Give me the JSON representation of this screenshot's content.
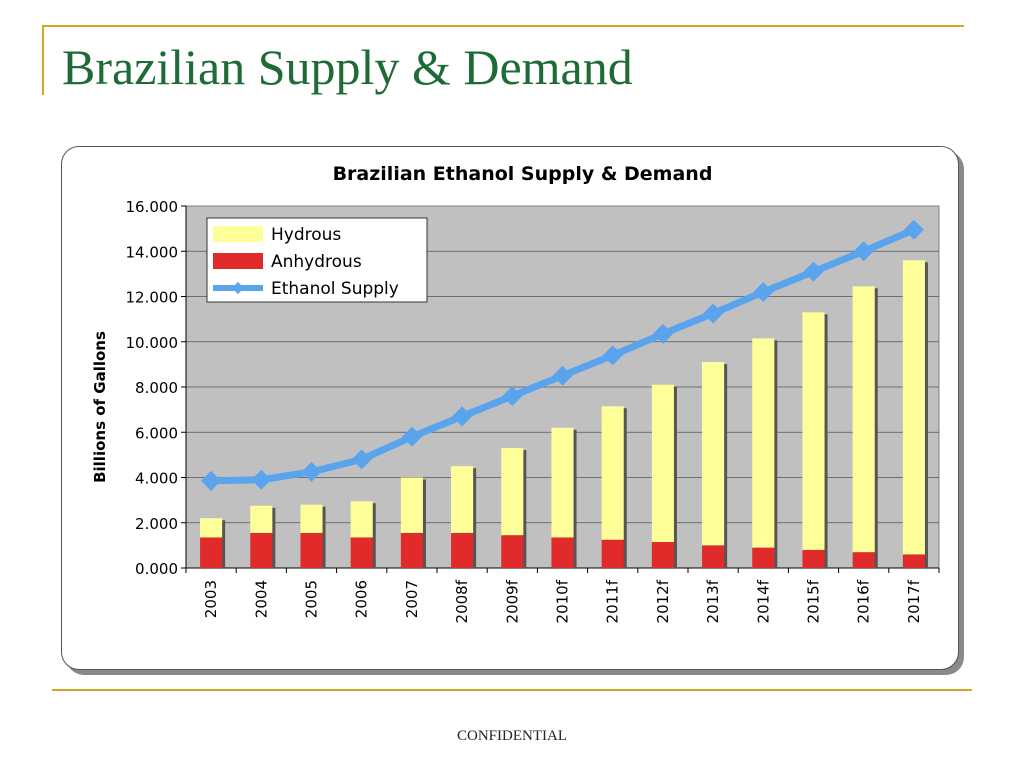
{
  "slide": {
    "title": "Brazilian Supply & Demand",
    "footer": "CONFIDENTIAL"
  },
  "colors": {
    "title": "#1f6b37",
    "frame_line": "#d4a32b",
    "plot_bg": "#c0c0c0",
    "hydrous": "#ffff99",
    "anhydrous": "#e12a2a",
    "supply": "#5aa4ee"
  },
  "chart_data": {
    "type": "bar",
    "stacked": true,
    "title": "Brazilian Ethanol Supply & Demand",
    "ylabel": "Billions of Gallons",
    "xlabel": "",
    "ylim": [
      0,
      16
    ],
    "y_ticks": [
      "0.000",
      "2.000",
      "4.000",
      "6.000",
      "8.000",
      "10.000",
      "12.000",
      "14.000",
      "16.000"
    ],
    "categories": [
      "2003",
      "2004",
      "2005",
      "2006",
      "2007",
      "2008f",
      "2009f",
      "2010f",
      "2011f",
      "2012f",
      "2013f",
      "2014f",
      "2015f",
      "2016f",
      "2017f"
    ],
    "series": [
      {
        "name": "Hydrous",
        "kind": "bar",
        "values": [
          0.85,
          1.2,
          1.25,
          1.6,
          2.45,
          2.95,
          3.85,
          4.85,
          5.9,
          6.95,
          8.1,
          9.25,
          10.5,
          11.75,
          13.0
        ]
      },
      {
        "name": "Anhydrous",
        "kind": "bar",
        "values": [
          1.35,
          1.55,
          1.55,
          1.35,
          1.55,
          1.55,
          1.45,
          1.35,
          1.25,
          1.15,
          1.0,
          0.9,
          0.8,
          0.7,
          0.6
        ]
      },
      {
        "name": "Ethanol Supply",
        "kind": "line",
        "values": [
          3.85,
          3.9,
          4.25,
          4.8,
          5.8,
          6.7,
          7.6,
          8.5,
          9.4,
          10.35,
          11.25,
          12.2,
          13.1,
          14.0,
          14.95
        ]
      }
    ],
    "legend_position": "top-left",
    "grid": true
  }
}
